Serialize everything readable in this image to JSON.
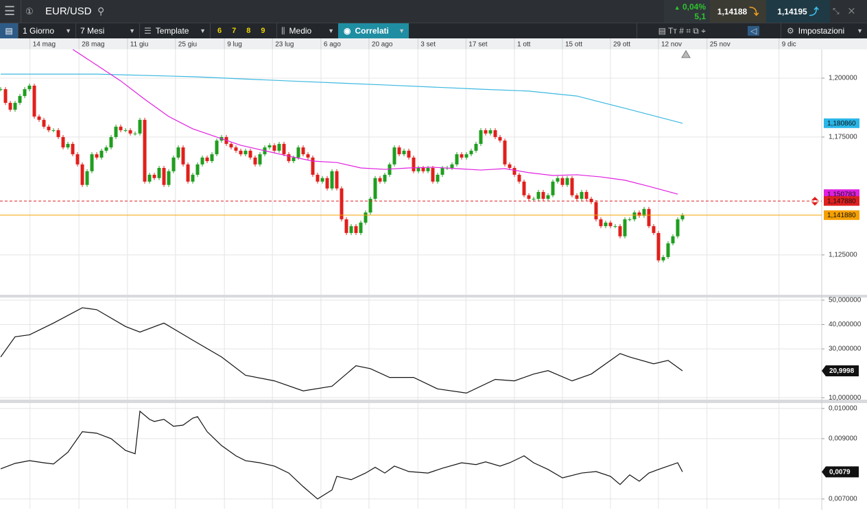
{
  "header": {
    "symbol": "EUR/USD",
    "change": "0,04%",
    "change_points": "5,1",
    "sell": "1,14188",
    "buy": "1,14195"
  },
  "toolbar": {
    "interval": "1 Giorno",
    "range": "7 Mesi",
    "template": "Template",
    "presets": [
      "6",
      "7",
      "8",
      "9"
    ],
    "chart_style": "Medio",
    "correlated": "Correlati",
    "settings": "Impostazioni"
  },
  "chart_data": [
    {
      "type": "candlestick",
      "xlim": [
        0,
        171
      ],
      "xticks": [
        {
          "value": 6.1,
          "label": "14 mag"
        },
        {
          "value": 16.3,
          "label": "28 mag"
        },
        {
          "value": 26.4,
          "label": "11 giu"
        },
        {
          "value": 36.4,
          "label": "25 giu"
        },
        {
          "value": 46.6,
          "label": "9 lug"
        },
        {
          "value": 56.6,
          "label": "23 lug"
        },
        {
          "value": 66.7,
          "label": "6 ago"
        },
        {
          "value": 76.7,
          "label": "20 ago"
        },
        {
          "value": 86.9,
          "label": "3 set"
        },
        {
          "value": 96.9,
          "label": "17 set"
        },
        {
          "value": 107,
          "label": "1 ott"
        },
        {
          "value": 117,
          "label": "15 ott"
        },
        {
          "value": 127,
          "label": "29 ott"
        },
        {
          "value": 137,
          "label": "12 nov"
        },
        {
          "value": 147.1,
          "label": "25 nov"
        },
        {
          "value": 162.1,
          "label": "9 dic"
        }
      ],
      "ylim": [
        1.1081,
        1.2122
      ],
      "yticks": [
        {
          "value": 1.2,
          "label": "1,200000"
        },
        {
          "value": 1.175,
          "label": "1,175000"
        },
        {
          "value": 1.125,
          "label": "1,125000"
        }
      ],
      "up_color": "#1f9e1f",
      "down_color": "#e0201c",
      "closes": [
        1.1953,
        1.1895,
        1.1866,
        1.1895,
        1.1924,
        1.1953,
        1.1968,
        1.1837,
        1.1823,
        1.1794,
        1.1779,
        1.1779,
        1.175,
        1.1706,
        1.1721,
        1.1677,
        1.1634,
        1.1547,
        1.1605,
        1.1677,
        1.1663,
        1.1692,
        1.1706,
        1.175,
        1.1794,
        1.1779,
        1.1779,
        1.1765,
        1.1765,
        1.1823,
        1.1561,
        1.159,
        1.1576,
        1.1619,
        1.1547,
        1.1605,
        1.1663,
        1.1706,
        1.1634,
        1.1561,
        1.159,
        1.1634,
        1.1663,
        1.1648,
        1.1677,
        1.1735,
        1.175,
        1.1721,
        1.1706,
        1.1692,
        1.1677,
        1.1692,
        1.1663,
        1.1634,
        1.1677,
        1.1706,
        1.1715,
        1.1692,
        1.1721,
        1.1677,
        1.1648,
        1.1663,
        1.1706,
        1.1677,
        1.1663,
        1.159,
        1.1561,
        1.1576,
        1.1532,
        1.1605,
        1.1532,
        1.1401,
        1.1343,
        1.1372,
        1.1343,
        1.1387,
        1.143,
        1.1488,
        1.1576,
        1.1561,
        1.159,
        1.1634,
        1.1706,
        1.1677,
        1.1692,
        1.1663,
        1.1605,
        1.1619,
        1.1605,
        1.1619,
        1.1561,
        1.159,
        1.1619,
        1.1619,
        1.1634,
        1.1677,
        1.1663,
        1.1677,
        1.1692,
        1.1721,
        1.1779,
        1.1765,
        1.1779,
        1.175,
        1.1735,
        1.1634,
        1.1619,
        1.159,
        1.1561,
        1.1503,
        1.1488,
        1.1488,
        1.1517,
        1.1488,
        1.1503,
        1.1561,
        1.1576,
        1.1547,
        1.1576,
        1.1503,
        1.1488,
        1.1517,
        1.1488,
        1.1474,
        1.1401,
        1.1372,
        1.1387,
        1.1372,
        1.1372,
        1.1329,
        1.1401,
        1.1401,
        1.143,
        1.1416,
        1.1445,
        1.1372,
        1.1343,
        1.1227,
        1.1241,
        1.1299,
        1.1329,
        1.1401,
        1.1419
      ],
      "overlays": [
        {
          "color": "#3bb8e0",
          "x": [
            0,
            20,
            40,
            60,
            80,
            100,
            110,
            120,
            130,
            142
          ],
          "values": [
            1.2017,
            1.2017,
            1.2006,
            1.1988,
            1.1971,
            1.1953,
            1.1945,
            1.1924,
            1.1872,
            1.18086
          ]
        },
        {
          "color": "#e020e0",
          "x": [
            15,
            20,
            25,
            30,
            35,
            40,
            45,
            50,
            55,
            60,
            65,
            70,
            75,
            80,
            85,
            90,
            95,
            100,
            105,
            110,
            115,
            120,
            125,
            130,
            135,
            141
          ],
          "values": [
            1.2122,
            1.2055,
            1.1988,
            1.191,
            1.1837,
            1.1785,
            1.175,
            1.1715,
            1.1692,
            1.1669,
            1.1648,
            1.1642,
            1.1619,
            1.1613,
            1.1619,
            1.1622,
            1.1616,
            1.161,
            1.1616,
            1.1599,
            1.1587,
            1.159,
            1.1581,
            1.1567,
            1.1541,
            1.150783
          ]
        }
      ],
      "tags": [
        {
          "value": 1.18086,
          "label": "1,180860",
          "color": "#29b6e8"
        },
        {
          "value": 1.150783,
          "label": "1,150783",
          "color": "#e020e0"
        },
        {
          "value": 1.14788,
          "label": "1,147880",
          "color": "#e02020",
          "line": "dashed"
        },
        {
          "value": 1.14188,
          "label": "1,141880",
          "color": "#f5a000",
          "line": "solid"
        }
      ]
    },
    {
      "type": "line",
      "xlim": [
        0,
        171
      ],
      "ylim": [
        9.2,
        51.1
      ],
      "yticks": [
        {
          "value": 50,
          "label": "50,000000"
        },
        {
          "value": 40,
          "label": "40,000000"
        },
        {
          "value": 30,
          "label": "30,000000"
        },
        {
          "value": 10,
          "label": "10,000000"
        }
      ],
      "color": "#111111",
      "x": [
        0,
        3,
        6,
        11,
        17,
        20,
        26,
        29,
        34,
        40,
        46,
        51,
        57,
        63,
        69,
        74,
        77,
        81,
        86,
        91,
        97,
        103,
        107,
        111,
        114,
        119,
        123,
        129,
        131,
        136,
        139,
        142
      ],
      "values": [
        26.7,
        35.0,
        35.8,
        40.6,
        46.9,
        46.1,
        39.2,
        36.9,
        40.6,
        33.6,
        26.7,
        19.2,
        16.9,
        12.8,
        14.7,
        23.1,
        21.9,
        18.3,
        18.3,
        13.6,
        11.9,
        17.5,
        16.9,
        19.7,
        21.1,
        16.9,
        19.7,
        28.1,
        26.7,
        23.9,
        25.3,
        20.9998
      ],
      "last": {
        "value": 20.9998,
        "label": "20,9998"
      }
    },
    {
      "type": "line",
      "xlim": [
        0,
        171
      ],
      "ylim": [
        0.00668,
        0.01018
      ],
      "yticks": [
        {
          "value": 0.01,
          "label": "0,010000"
        },
        {
          "value": 0.009,
          "label": "0,009000"
        },
        {
          "value": 0.007,
          "label": "0,007000"
        }
      ],
      "color": "#111111",
      "x": [
        0,
        3,
        6,
        9,
        11,
        14,
        17,
        20,
        23,
        26,
        28,
        29,
        31,
        32,
        34,
        36,
        38,
        40,
        41,
        43,
        46,
        49,
        51,
        54,
        57,
        60,
        63,
        66,
        69,
        70,
        73,
        76,
        78,
        80,
        82,
        85,
        89,
        92,
        96,
        99,
        101,
        104,
        106,
        109,
        111,
        114,
        117,
        121,
        124,
        127,
        129,
        131,
        133,
        135,
        137,
        141,
        142
      ],
      "values": [
        0.008,
        0.00818,
        0.00827,
        0.0082,
        0.00816,
        0.00855,
        0.00923,
        0.00918,
        0.009,
        0.00861,
        0.0085,
        0.00991,
        0.00964,
        0.00957,
        0.00964,
        0.00941,
        0.00945,
        0.00968,
        0.00973,
        0.00923,
        0.00877,
        0.00843,
        0.00827,
        0.0082,
        0.00809,
        0.00786,
        0.00741,
        0.007,
        0.0073,
        0.00775,
        0.00764,
        0.00786,
        0.00805,
        0.00786,
        0.00809,
        0.00791,
        0.00786,
        0.00802,
        0.0082,
        0.00814,
        0.00823,
        0.00809,
        0.0082,
        0.00843,
        0.0082,
        0.00798,
        0.0077,
        0.00786,
        0.00791,
        0.00775,
        0.00748,
        0.0078,
        0.00759,
        0.00786,
        0.00798,
        0.0082,
        0.0079
      ],
      "last": {
        "value": 0.0079,
        "label": "0,0079"
      }
    }
  ]
}
